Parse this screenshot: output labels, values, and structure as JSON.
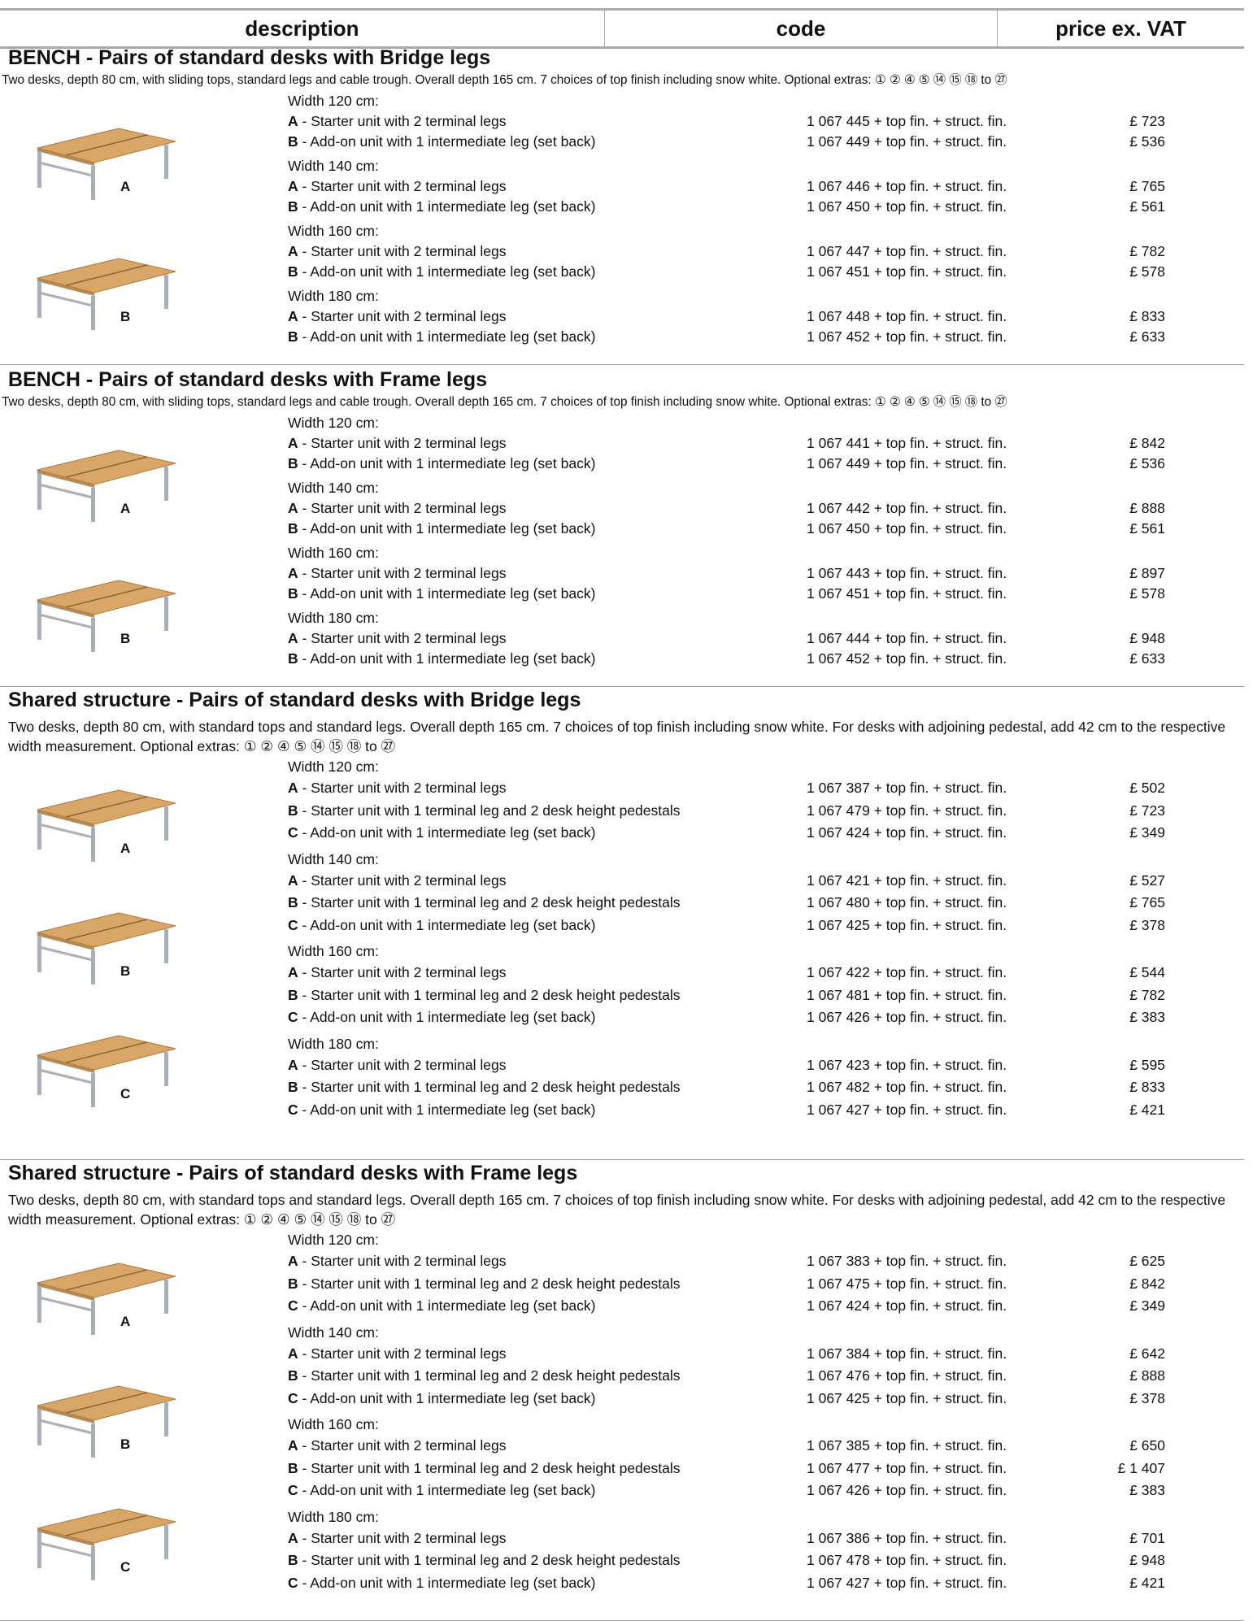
{
  "header": {
    "columns": [
      "description",
      "code",
      "price ex. VAT"
    ]
  },
  "sections": [
    {
      "title": "BENCH - Pairs of standard desks with Bridge legs",
      "description": "Two desks, depth 80 cm, with sliding tops, standard legs and cable trough. Overall depth 165 cm. 7 choices of top finish including snow white. Optional extras: ① ② ④ ⑤ ⑭ ⑮ ⑱ to ㉗",
      "image_labels": [
        "A",
        "B"
      ],
      "groups": [
        {
          "label": "Width 120 cm:",
          "rows": [
            {
              "letter": "A",
              "text": "- Starter unit with 2 terminal legs",
              "code": "1 067 445 + top fin. + struct. fin.",
              "price": "£ 723"
            },
            {
              "letter": "B",
              "text": "- Add-on unit with 1 intermediate leg (set back)",
              "code": "1 067 449 + top fin. + struct. fin.",
              "price": "£ 536"
            }
          ]
        },
        {
          "label": "Width 140 cm:",
          "rows": [
            {
              "letter": "A",
              "text": "- Starter unit with 2 terminal legs",
              "code": "1 067 446 + top fin. + struct. fin.",
              "price": "£ 765"
            },
            {
              "letter": "B",
              "text": "- Add-on unit with 1 intermediate leg (set back)",
              "code": "1 067 450 + top fin. + struct. fin.",
              "price": "£ 561"
            }
          ]
        },
        {
          "label": "Width 160 cm:",
          "rows": [
            {
              "letter": "A",
              "text": "- Starter unit with 2 terminal legs",
              "code": "1 067 447 + top fin. + struct. fin.",
              "price": "£ 782"
            },
            {
              "letter": "B",
              "text": "- Add-on unit with 1 intermediate leg (set back)",
              "code": "1 067 451 + top fin. + struct. fin.",
              "price": "£ 578"
            }
          ]
        },
        {
          "label": "Width 180 cm:",
          "rows": [
            {
              "letter": "A",
              "text": "- Starter unit with 2 terminal legs",
              "code": "1 067 448 + top fin. + struct. fin.",
              "price": "£ 833"
            },
            {
              "letter": "B",
              "text": "- Add-on unit with 1 intermediate leg (set back)",
              "code": "1 067 452 + top fin. + struct. fin.",
              "price": "£ 633"
            }
          ]
        }
      ]
    },
    {
      "title": "BENCH - Pairs of standard desks with Frame legs",
      "description": "Two desks, depth 80 cm, with sliding tops, standard legs and cable trough. Overall depth 165 cm. 7 choices of top finish including snow white. Optional extras: ① ② ④ ⑤ ⑭ ⑮ ⑱ to ㉗",
      "image_labels": [
        "A",
        "B"
      ],
      "groups": [
        {
          "label": "Width 120 cm:",
          "rows": [
            {
              "letter": "A",
              "text": "- Starter unit with 2 terminal legs",
              "code": "1 067 441 + top fin. + struct. fin.",
              "price": "£ 842"
            },
            {
              "letter": "B",
              "text": "- Add-on unit with 1 intermediate leg (set back)",
              "code": "1 067 449 + top fin. + struct. fin.",
              "price": "£ 536"
            }
          ]
        },
        {
          "label": "Width 140 cm:",
          "rows": [
            {
              "letter": "A",
              "text": "- Starter unit with 2 terminal legs",
              "code": "1 067 442 + top fin. + struct. fin.",
              "price": "£ 888"
            },
            {
              "letter": "B",
              "text": "- Add-on unit with 1 intermediate leg (set back)",
              "code": "1 067 450 + top fin. + struct. fin.",
              "price": "£ 561"
            }
          ]
        },
        {
          "label": "Width 160 cm:",
          "rows": [
            {
              "letter": "A",
              "text": "- Starter unit with 2 terminal legs",
              "code": "1 067 443 + top fin. + struct. fin.",
              "price": "£ 897"
            },
            {
              "letter": "B",
              "text": "- Add-on unit with 1 intermediate leg (set back)",
              "code": "1 067 451 + top fin. + struct. fin.",
              "price": "£ 578"
            }
          ]
        },
        {
          "label": "Width 180 cm:",
          "rows": [
            {
              "letter": "A",
              "text": "- Starter unit with 2 terminal legs",
              "code": "1 067 444 + top fin. + struct. fin.",
              "price": "£ 948"
            },
            {
              "letter": "B",
              "text": "- Add-on unit with 1 intermediate leg (set back)",
              "code": "1 067 452 + top fin. + struct. fin.",
              "price": "£ 633"
            }
          ]
        }
      ]
    },
    {
      "title": "Shared structure - Pairs of standard desks with Bridge legs",
      "description": "Two desks, depth 80 cm, with standard tops and standard legs. Overall depth 165 cm. 7 choices of top finish including snow white. For desks with adjoining pedestal, add 42 cm to the respective width measurement. Optional extras: ① ② ④ ⑤ ⑭ ⑮ ⑱ to ㉗",
      "image_labels": [
        "A",
        "B",
        "C"
      ],
      "groups": [
        {
          "label": "Width 120 cm:",
          "rows": [
            {
              "letter": "A",
              "text": "- Starter unit with 2 terminal legs",
              "code": "1 067 387 + top fin. + struct. fin.",
              "price": "£ 502"
            },
            {
              "letter": "B",
              "text": "- Starter unit with 1 terminal leg and 2 desk height pedestals",
              "code": "1 067 479 + top fin. + struct. fin.",
              "price": "£ 723"
            },
            {
              "letter": "C",
              "text": "- Add-on unit with 1 intermediate leg (set back)",
              "code": "1 067 424 + top fin. + struct. fin.",
              "price": "£ 349"
            }
          ]
        },
        {
          "label": "Width 140 cm:",
          "rows": [
            {
              "letter": "A",
              "text": "- Starter unit with 2 terminal legs",
              "code": "1 067 421 + top fin. + struct. fin.",
              "price": "£ 527"
            },
            {
              "letter": "B",
              "text": "- Starter unit with 1 terminal leg and 2 desk height pedestals",
              "code": "1 067 480 + top fin. + struct. fin.",
              "price": "£ 765"
            },
            {
              "letter": "C",
              "text": "- Add-on unit with 1 intermediate leg (set back)",
              "code": "1 067 425 + top fin. + struct. fin.",
              "price": "£ 378"
            }
          ]
        },
        {
          "label": "Width 160 cm:",
          "rows": [
            {
              "letter": "A",
              "text": "- Starter unit with 2 terminal legs",
              "code": "1 067 422 + top fin. + struct. fin.",
              "price": "£ 544"
            },
            {
              "letter": "B",
              "text": "- Starter unit with 1 terminal leg and 2 desk height pedestals",
              "code": "1 067 481 + top fin. + struct. fin.",
              "price": "£ 782"
            },
            {
              "letter": "C",
              "text": "- Add-on unit with 1 intermediate leg (set back)",
              "code": "1 067 426 + top fin. + struct. fin.",
              "price": "£ 383"
            }
          ]
        },
        {
          "label": "Width 180 cm:",
          "rows": [
            {
              "letter": "A",
              "text": "- Starter unit with 2 terminal legs",
              "code": "1 067 423 + top fin. + struct. fin.",
              "price": "£ 595"
            },
            {
              "letter": "B",
              "text": "- Starter unit with 1 terminal leg and 2 desk height pedestals",
              "code": "1 067 482 + top fin. + struct. fin.",
              "price": "£ 833"
            },
            {
              "letter": "C",
              "text": "- Add-on unit with 1 intermediate leg (set back)",
              "code": "1 067 427 + top fin. + struct. fin.",
              "price": "£ 421"
            }
          ]
        }
      ]
    },
    {
      "title": "Shared structure - Pairs of standard desks with Frame legs",
      "description": "Two desks, depth 80 cm, with standard tops and standard legs. Overall depth 165 cm. 7 choices of top finish including snow white. For desks with adjoining pedestal, add 42 cm to the respective width measurement. Optional extras: ① ② ④ ⑤ ⑭ ⑮ ⑱ to ㉗",
      "image_labels": [
        "A",
        "B",
        "C"
      ],
      "groups": [
        {
          "label": "Width 120 cm:",
          "rows": [
            {
              "letter": "A",
              "text": "- Starter unit with 2 terminal legs",
              "code": "1 067 383 + top fin. + struct. fin.",
              "price": "£ 625"
            },
            {
              "letter": "B",
              "text": "- Starter unit with 1 terminal leg and 2 desk height pedestals",
              "code": "1 067 475 + top fin. + struct. fin.",
              "price": "£ 842"
            },
            {
              "letter": "C",
              "text": "- Add-on unit with 1 intermediate leg (set back)",
              "code": "1 067 424 + top fin. + struct. fin.",
              "price": "£ 349"
            }
          ]
        },
        {
          "label": "Width 140 cm:",
          "rows": [
            {
              "letter": "A",
              "text": "- Starter unit with 2 terminal legs",
              "code": "1 067 384 + top fin. + struct. fin.",
              "price": "£ 642"
            },
            {
              "letter": "B",
              "text": "- Starter unit with 1 terminal leg and 2 desk height pedestals",
              "code": "1 067 476 + top fin. + struct. fin.",
              "price": "£ 888"
            },
            {
              "letter": "C",
              "text": "- Add-on unit with 1 intermediate leg (set back)",
              "code": "1 067 425 + top fin. + struct. fin.",
              "price": "£ 378"
            }
          ]
        },
        {
          "label": "Width 160 cm:",
          "rows": [
            {
              "letter": "A",
              "text": "- Starter unit with 2 terminal legs",
              "code": "1 067 385 + top fin. + struct. fin.",
              "price": "£ 650"
            },
            {
              "letter": "B",
              "text": "- Starter unit with 1 terminal leg and 2 desk height pedestals",
              "code": "1 067 477 + top fin. + struct. fin.",
              "price": "£ 1 407"
            },
            {
              "letter": "C",
              "text": "- Add-on unit with 1 intermediate leg (set back)",
              "code": "1 067 426 + top fin. + struct. fin.",
              "price": "£ 383"
            }
          ]
        },
        {
          "label": "Width 180 cm:",
          "rows": [
            {
              "letter": "A",
              "text": "- Starter unit with 2 terminal legs",
              "code": "1 067 386 + top fin. + struct. fin.",
              "price": "£ 701"
            },
            {
              "letter": "B",
              "text": "- Starter unit with 1 terminal leg and 2 desk height pedestals",
              "code": "1 067 478 + top fin. + struct. fin.",
              "price": "£ 948"
            },
            {
              "letter": "C",
              "text": "- Add-on unit with 1 intermediate leg (set back)",
              "code": "1 067 427 + top fin. + struct. fin.",
              "price": "£ 421"
            }
          ]
        }
      ]
    }
  ]
}
